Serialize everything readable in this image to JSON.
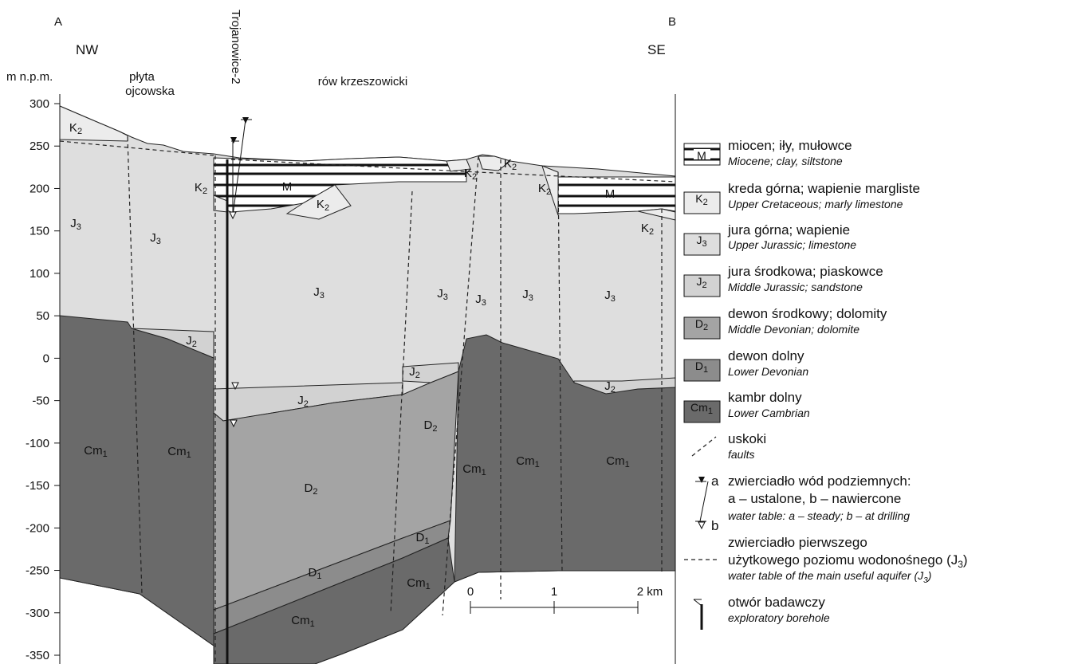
{
  "section": {
    "end_left": "A",
    "end_right": "B",
    "dir_left": "NW",
    "dir_right": "SE",
    "axis_title": "m n.p.m.",
    "yticks": [
      300,
      250,
      200,
      150,
      100,
      50,
      0,
      -50,
      -100,
      -150,
      -200,
      -250,
      -300,
      -350
    ],
    "region_1": [
      "płyta",
      "ojcowska"
    ],
    "region_2": "rów krzeszowicki",
    "borehole": "Trojanowice-2",
    "scale": [
      "0",
      "1",
      "2 km"
    ]
  },
  "legend": {
    "items": [
      {
        "symbol": {
          "base": "M"
        },
        "pl": "miocen; iły, mułowce",
        "en": "Miocene; clay, siltstone"
      },
      {
        "symbol": {
          "base": "K",
          "sub": "2"
        },
        "pl": "kreda górna; wapienie margliste",
        "en": "Upper Cretaceous; marly limestone"
      },
      {
        "symbol": {
          "base": "J",
          "sub": "3"
        },
        "pl": "jura górna; wapienie",
        "en": "Upper Jurassic; limestone"
      },
      {
        "symbol": {
          "base": "J",
          "sub": "2"
        },
        "pl": "jura środkowa; piaskowce",
        "en": "Middle Jurassic; sandstone"
      },
      {
        "symbol": {
          "base": "D",
          "sub": "2"
        },
        "pl": "dewon środkowy; dolomity",
        "en": "Middle Devonian; dolomite"
      },
      {
        "symbol": {
          "base": "D",
          "sub": "1"
        },
        "pl": "dewon dolny",
        "en": "Lower Devonian"
      },
      {
        "symbol": {
          "base": "Cm",
          "sub": "1"
        },
        "pl": "kambr dolny",
        "en": "Lower Cambrian"
      },
      {
        "pl": "uskoki",
        "en": "faults"
      },
      {
        "pl": "zwierciadło wód podziemnych:",
        "pl2": "a – ustalone, b – nawiercone",
        "en": "water table: a – steady; b – at drilling",
        "marks": [
          "a",
          "b"
        ]
      },
      {
        "pl": "zwierciadło pierwszego",
        "pl2": "użytkowego poziomu wodonośnego (J",
        "pl2_sub": "3",
        "pl2_end": ")",
        "en": "water table of the main useful aquifer (J",
        "en_sub": "3",
        "en_end": ")"
      },
      {
        "pl": "otwór badawczy",
        "en": "exploratory borehole"
      }
    ]
  }
}
